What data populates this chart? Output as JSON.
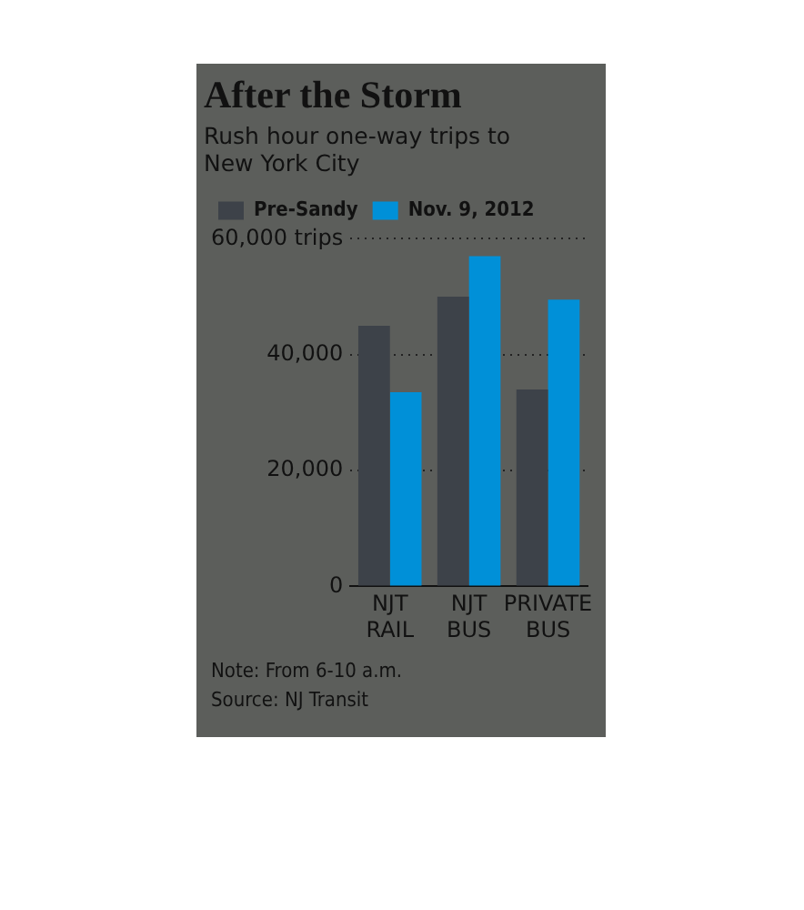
{
  "chart_data": {
    "type": "bar",
    "title": "After the Storm",
    "subtitle": "Rush hour one-way trips to New York City",
    "categories": [
      "NJT RAIL",
      "NJT BUS",
      "PRIVATE BUS"
    ],
    "series": [
      {
        "name": "Pre-Sandy",
        "color": "#3d4249",
        "values": [
          45000,
          50000,
          34000
        ]
      },
      {
        "name": "Nov. 9, 2012",
        "color": "#0090d8",
        "values": [
          33500,
          57000,
          49500
        ]
      }
    ],
    "ylim": [
      0,
      60000
    ],
    "yticks": [
      0,
      {
        "value": 20000,
        "label": "20,000"
      },
      {
        "value": 40000,
        "label": "40,000"
      },
      {
        "value": 60000,
        "label": "60,000 trips"
      }
    ],
    "grid": "y",
    "legend": "top left",
    "annotations": [
      "Note: From 6-10 a.m.",
      "Source: NJ Transit"
    ]
  }
}
